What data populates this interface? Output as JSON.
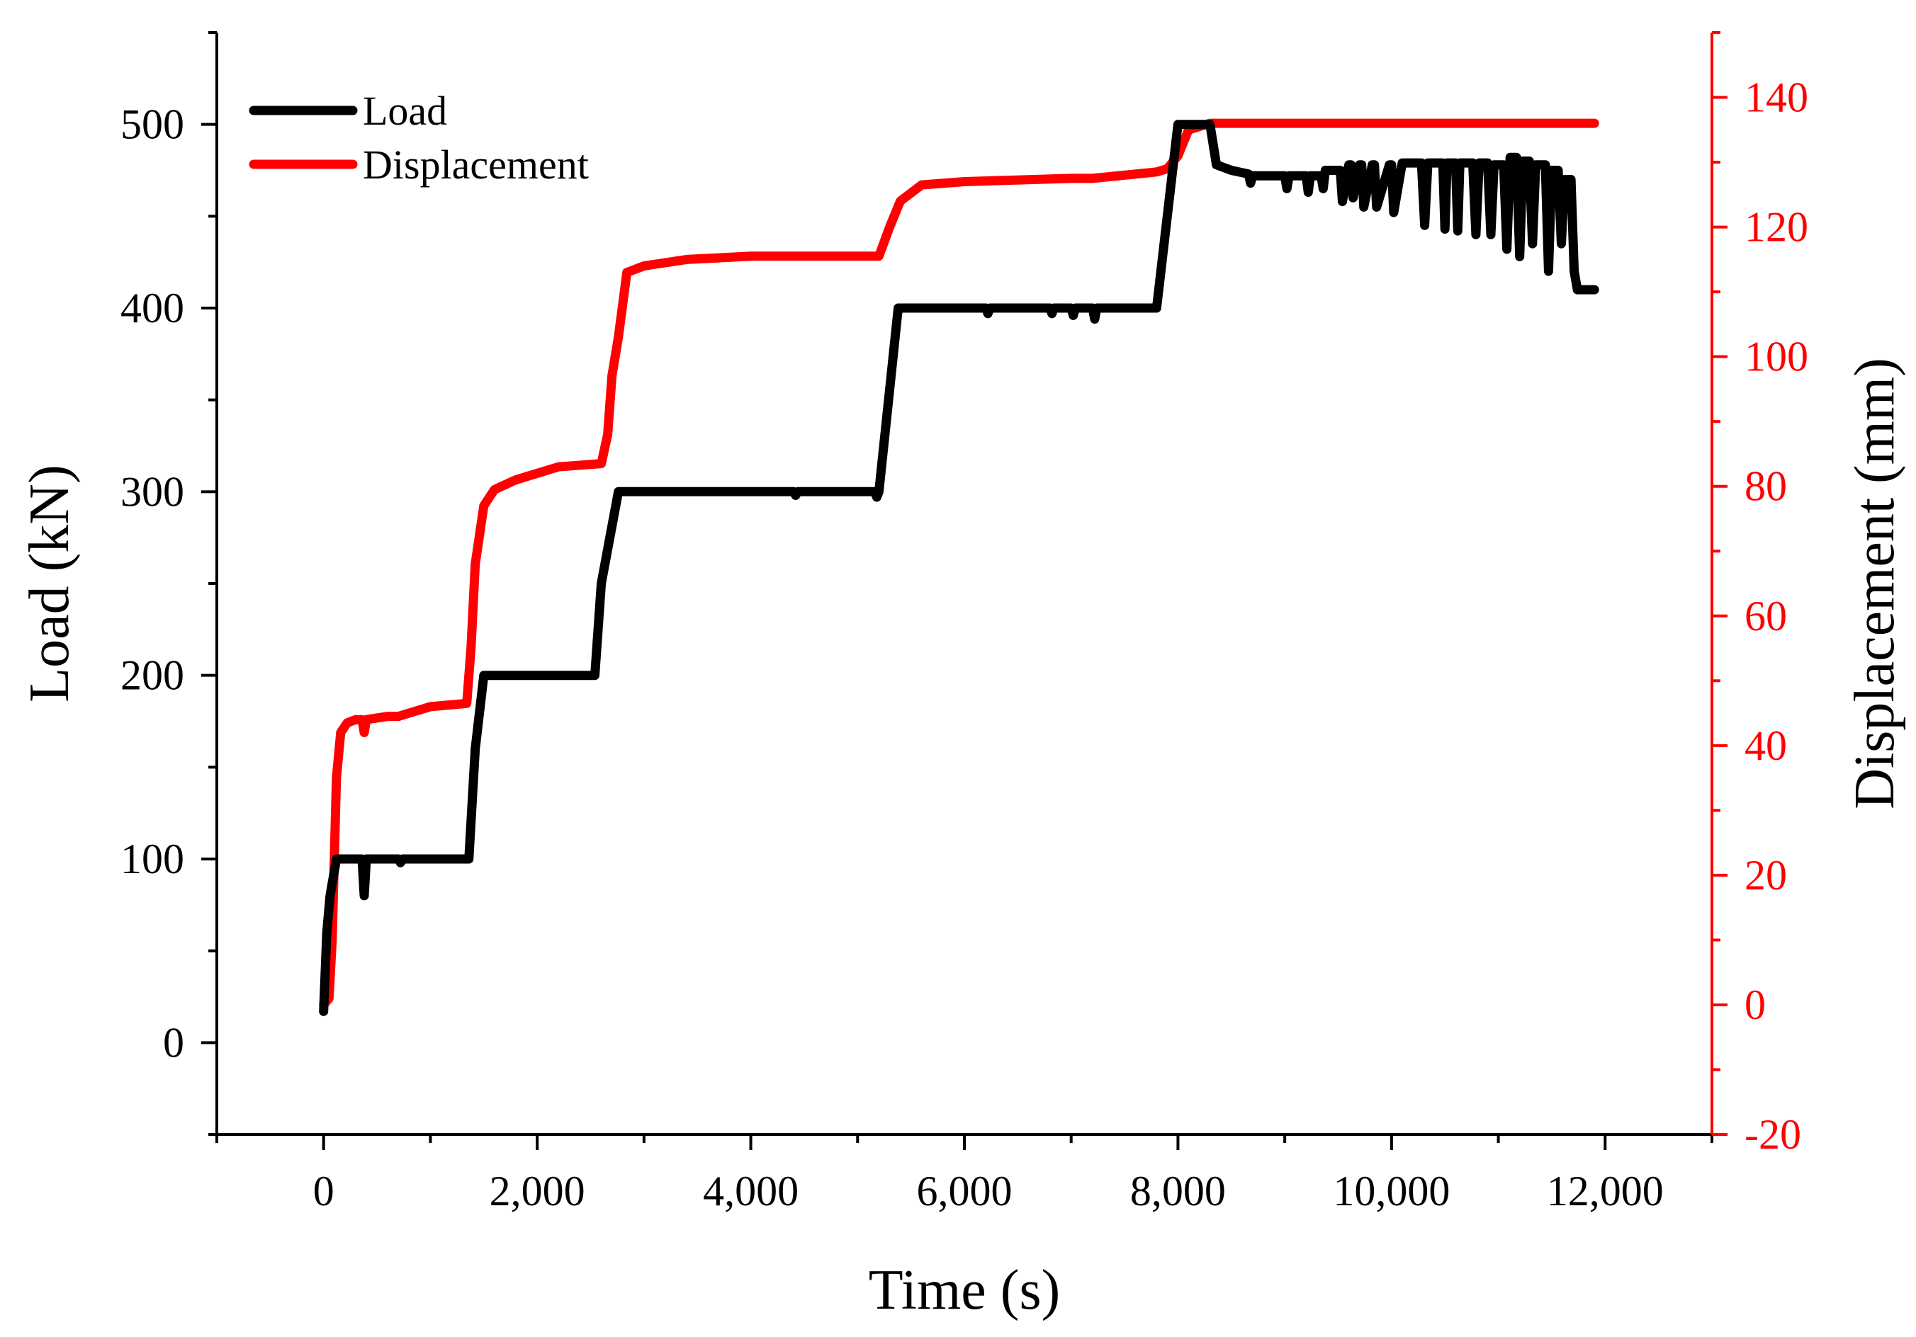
{
  "chart_data": {
    "type": "line",
    "title": "",
    "xlabel": "Time (s)",
    "ylabel": "Load (kN)",
    "y2label": "Displacement (mm)",
    "xlim": [
      -1000,
      13000
    ],
    "ylim": [
      -50,
      550
    ],
    "y2lim": [
      -20,
      150
    ],
    "xticks": [
      0,
      2000,
      4000,
      6000,
      8000,
      10000,
      12000
    ],
    "xtick_labels": [
      "0",
      "2,000",
      "4,000",
      "6,000",
      "8,000",
      "10,000",
      "12,000"
    ],
    "yticks": [
      0,
      100,
      200,
      300,
      400,
      500
    ],
    "ytick_labels": [
      "0",
      "100",
      "200",
      "300",
      "400",
      "500"
    ],
    "y2ticks": [
      -20,
      0,
      20,
      40,
      60,
      80,
      100,
      120,
      140
    ],
    "y2tick_labels": [
      "-20",
      "0",
      "20",
      "40",
      "60",
      "80",
      "100",
      "120",
      "140"
    ],
    "grid": false,
    "legend_position": "top-left",
    "colors": {
      "load": "#000000",
      "displacement": "#ff0000",
      "axis": "#000000",
      "axis2": "#ff0000"
    },
    "series": [
      {
        "name": "Load",
        "axis": "left",
        "color": "#000000",
        "x": [
          0,
          30,
          60,
          120,
          200,
          300,
          360,
          380,
          400,
          420,
          440,
          700,
          720,
          740,
          1000,
          1360,
          1420,
          1500,
          2000,
          2540,
          2600,
          2760,
          2800,
          4400,
          4420,
          4440,
          5000,
          5160,
          5180,
          5200,
          5380,
          5600,
          6000,
          6200,
          6220,
          6240,
          6800,
          6820,
          6840,
          7000,
          7020,
          7040,
          7200,
          7220,
          7240,
          7800,
          8000,
          8200,
          8300,
          8360,
          8500,
          8660,
          8680,
          8700,
          9000,
          9020,
          9040,
          9200,
          9220,
          9240,
          9340,
          9360,
          9380,
          9520,
          9540,
          9600,
          9620,
          9640,
          9700,
          9720,
          9740,
          9820,
          9840,
          9860,
          9980,
          10000,
          10020,
          10100,
          10280,
          10310,
          10340,
          10480,
          10500,
          10520,
          10600,
          10620,
          10640,
          10760,
          10790,
          10820,
          10900,
          10930,
          10960,
          11050,
          11080,
          11110,
          11170,
          11200,
          11230,
          11290,
          11320,
          11350,
          11440,
          11470,
          11500,
          11560,
          11590,
          11620,
          11680,
          11710,
          11740,
          11800,
          11900
        ],
        "y": [
          17,
          60,
          80,
          100,
          100,
          100,
          100,
          80,
          100,
          100,
          100,
          100,
          98,
          100,
          100,
          100,
          160,
          200,
          200,
          200,
          250,
          300,
          300,
          300,
          298,
          300,
          300,
          300,
          297,
          300,
          400,
          400,
          400,
          400,
          397,
          400,
          400,
          397,
          400,
          400,
          396,
          400,
          400,
          394,
          400,
          400,
          500,
          500,
          500,
          478,
          475,
          473,
          468,
          472,
          472,
          465,
          472,
          472,
          463,
          472,
          472,
          465,
          475,
          475,
          458,
          478,
          478,
          460,
          478,
          478,
          455,
          478,
          478,
          455,
          478,
          478,
          452,
          479,
          479,
          445,
          479,
          479,
          443,
          479,
          479,
          442,
          479,
          479,
          440,
          479,
          479,
          440,
          478,
          478,
          432,
          482,
          482,
          428,
          480,
          480,
          435,
          478,
          478,
          420,
          475,
          475,
          435,
          470,
          470,
          420,
          410,
          410,
          410
        ]
      },
      {
        "name": "Displacement",
        "axis": "right",
        "color": "#ff0000",
        "x": [
          0,
          50,
          80,
          120,
          160,
          220,
          300,
          360,
          380,
          400,
          600,
          700,
          1000,
          1340,
          1380,
          1420,
          1500,
          1600,
          1800,
          2000,
          2200,
          2600,
          2660,
          2700,
          2760,
          2840,
          3000,
          3400,
          4000,
          5000,
          5200,
          5300,
          5400,
          5600,
          6000,
          7000,
          7200,
          7800,
          7900,
          8000,
          8100,
          8300,
          9000,
          10000,
          11000,
          11900
        ],
        "y": [
          0,
          1,
          10,
          35,
          42,
          43.5,
          44,
          44,
          42,
          44,
          44.5,
          44.5,
          46,
          46.5,
          55,
          68,
          77,
          79.5,
          81,
          82,
          83,
          83.5,
          88,
          97,
          103,
          113,
          114,
          115,
          115.5,
          115.5,
          115.5,
          120,
          124,
          126.5,
          127,
          127.5,
          127.5,
          128.5,
          129,
          131,
          135,
          136,
          136,
          136,
          136,
          136
        ]
      }
    ]
  }
}
